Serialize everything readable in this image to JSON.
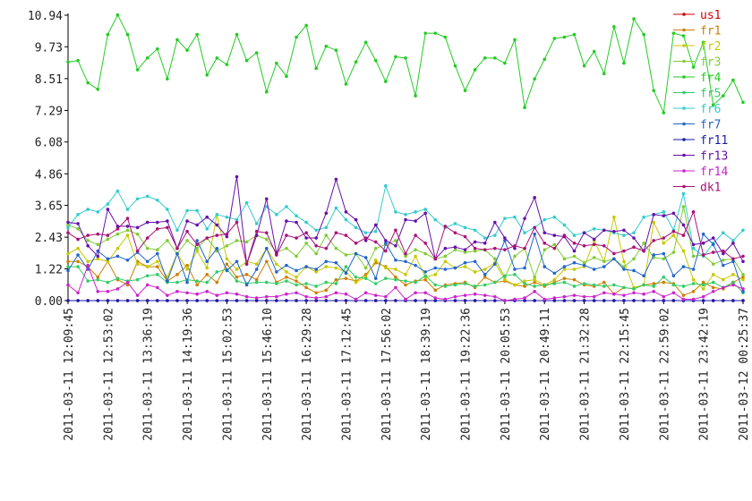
{
  "chart_data": {
    "type": "line",
    "legend": "upper right",
    "categories": [
      "2011-03-11 12:09:45",
      null,
      null,
      null,
      "2011-03-11 12:53:02",
      null,
      null,
      null,
      "2011-03-11 13:36:19",
      null,
      null,
      null,
      "2011-03-11 14:19:36",
      null,
      null,
      null,
      "2011-03-11 15:02:53",
      null,
      null,
      null,
      "2011-03-11 15:46:10",
      null,
      null,
      null,
      "2011-03-11 16:29:28",
      null,
      null,
      null,
      "2011-03-11 17:12:45",
      null,
      null,
      null,
      "2011-03-11 17:56:02",
      null,
      null,
      null,
      "2011-03-11 18:39:19",
      null,
      null,
      null,
      "2011-03-11 19:22:36",
      null,
      null,
      null,
      "2011-03-11 20:05:53",
      null,
      null,
      null,
      "2011-03-11 20:49:11",
      null,
      null,
      null,
      "2011-03-11 21:32:28",
      null,
      null,
      null,
      "2011-03-11 22:15:45",
      null,
      null,
      null,
      "2011-03-11 22:59:02",
      null,
      null,
      null,
      "2011-03-11 23:42:19",
      null,
      null,
      null,
      "2011-03-12 00:25:37"
    ],
    "ylim": [
      0,
      10.94
    ],
    "yticks": [
      {
        "value": 0,
        "label": "0.00"
      },
      1.22,
      2.43,
      3.65,
      4.86,
      6.08,
      7.29,
      8.51,
      9.73,
      10.94
    ],
    "series": [
      {
        "name": "us1",
        "color": "#cc0000",
        "values": [
          0,
          0,
          0,
          0,
          0,
          0,
          0,
          0,
          0,
          0,
          0,
          0,
          0,
          0,
          0,
          0,
          0,
          0,
          0,
          0,
          0,
          0,
          0,
          0,
          0,
          0,
          0,
          0,
          0,
          0,
          0,
          0,
          0,
          0,
          0,
          0,
          0,
          0,
          0,
          0,
          0,
          0,
          0,
          0,
          0,
          0,
          0,
          0,
          0,
          0,
          0,
          0,
          0,
          0,
          0,
          0,
          0,
          0,
          0,
          0,
          0,
          0,
          0,
          0,
          0,
          0,
          0,
          0,
          0
        ]
      },
      {
        "name": "fr1",
        "color": "#cc8000",
        "values": [
          1.5,
          1.5,
          1.3,
          0.9,
          1.5,
          0.8,
          0.6,
          1.5,
          1.3,
          1.3,
          0.75,
          1.0,
          1.35,
          0.6,
          1.0,
          0.7,
          1.4,
          0.9,
          1.0,
          0.8,
          1.5,
          0.7,
          0.9,
          0.75,
          0.5,
          0.3,
          0.4,
          0.8,
          0.85,
          0.75,
          1.0,
          1.45,
          1.3,
          0.9,
          0.6,
          0.75,
          0.8,
          0.4,
          0.6,
          0.65,
          0.7,
          0.5,
          0.9,
          0.7,
          0.75,
          0.6,
          0.55,
          0.7,
          0.55,
          0.7,
          0.85,
          0.8,
          0.6,
          0.55,
          0.7,
          0.25,
          0.5,
          0.45,
          0.6,
          0.65,
          0.7,
          0.65,
          0.2,
          0.35,
          0.7,
          0.5,
          0.45,
          0.7,
          0.9
        ]
      },
      {
        "name": "fr2",
        "color": "#c8c800",
        "values": [
          1.8,
          2.0,
          1.5,
          1.6,
          1.5,
          2.0,
          2.5,
          1.4,
          1.3,
          1.5,
          0.9,
          1.8,
          1.2,
          1.9,
          1.25,
          3.3,
          1.6,
          1.2,
          1.5,
          1.4,
          2.0,
          1.4,
          1.1,
          0.9,
          1.3,
          1.1,
          1.3,
          1.25,
          1.1,
          0.7,
          0.9,
          1.55,
          1.25,
          1.2,
          1.0,
          1.7,
          0.9,
          1.0,
          1.5,
          1.25,
          1.3,
          1.1,
          1.2,
          1.45,
          0.8,
          0.6,
          0.75,
          0.8,
          0.6,
          0.8,
          1.2,
          1.2,
          1.3,
          2.3,
          1.5,
          3.2,
          1.5,
          0.5,
          0.6,
          3.0,
          2.2,
          2.5,
          1.9,
          0.8,
          0.45,
          1.0,
          0.8,
          1.0,
          0.8
        ]
      },
      {
        "name": "fr3",
        "color": "#80cc33",
        "values": [
          2.9,
          2.75,
          2.3,
          2.15,
          2.35,
          2.55,
          2.7,
          2.55,
          2.0,
          1.95,
          2.3,
          1.8,
          2.3,
          2.0,
          2.4,
          1.9,
          2.1,
          2.3,
          2.25,
          2.5,
          2.35,
          1.85,
          2.0,
          1.7,
          2.2,
          1.8,
          2.5,
          2.0,
          1.75,
          1.8,
          1.25,
          2.0,
          2.15,
          2.3,
          1.7,
          1.95,
          1.8,
          1.6,
          1.7,
          1.95,
          1.85,
          1.9,
          1.95,
          1.6,
          0.9,
          1.7,
          2.0,
          0.9,
          1.95,
          2.15,
          1.6,
          1.7,
          1.45,
          1.65,
          1.5,
          1.6,
          1.3,
          1.6,
          2.2,
          1.65,
          1.6,
          1.85,
          3.6,
          1.7,
          1.75,
          1.4,
          1.55,
          1.6,
          1.0
        ]
      },
      {
        "name": "fr4",
        "color": "#22cc22",
        "values": [
          9.15,
          9.2,
          8.35,
          8.1,
          10.2,
          10.95,
          10.2,
          8.85,
          9.3,
          9.65,
          8.5,
          10.0,
          9.6,
          10.2,
          8.65,
          9.3,
          9.05,
          10.2,
          9.2,
          9.5,
          8.0,
          9.1,
          8.6,
          10.1,
          10.55,
          8.9,
          9.75,
          9.6,
          8.3,
          9.15,
          9.9,
          9.2,
          8.4,
          9.35,
          9.3,
          7.85,
          10.25,
          10.25,
          10.1,
          9.0,
          8.05,
          8.85,
          9.3,
          9.3,
          9.1,
          10.0,
          7.4,
          8.5,
          9.25,
          10.05,
          10.1,
          10.2,
          9.0,
          9.55,
          8.7,
          10.5,
          9.1,
          10.8,
          10.2,
          8.05,
          7.2,
          10.25,
          10.15,
          8.95,
          9.9,
          7.5,
          7.85,
          8.45,
          7.6
        ]
      },
      {
        "name": "fr5",
        "color": "#33cc66",
        "values": [
          1.3,
          1.3,
          0.75,
          0.8,
          0.7,
          0.85,
          0.75,
          0.8,
          0.95,
          1.0,
          0.7,
          0.7,
          0.8,
          0.75,
          0.7,
          1.1,
          1.2,
          0.75,
          0.65,
          0.7,
          0.7,
          0.65,
          0.75,
          0.6,
          0.65,
          0.55,
          0.7,
          0.65,
          1.3,
          0.9,
          0.85,
          0.65,
          0.85,
          0.8,
          0.75,
          0.7,
          0.95,
          0.6,
          0.55,
          0.6,
          0.65,
          0.55,
          0.6,
          0.7,
          0.95,
          1.0,
          0.65,
          0.55,
          0.6,
          0.65,
          0.7,
          0.55,
          0.65,
          0.6,
          0.55,
          0.6,
          0.5,
          0.45,
          0.6,
          0.55,
          0.9,
          0.6,
          0.55,
          0.65,
          0.6,
          0.7,
          0.5,
          0.7,
          0.3
        ]
      },
      {
        "name": "fr6",
        "color": "#33cccc",
        "values": [
          2.8,
          3.3,
          3.5,
          3.4,
          3.7,
          4.2,
          3.5,
          3.9,
          4.0,
          3.85,
          3.5,
          2.7,
          3.45,
          3.45,
          2.75,
          3.3,
          3.2,
          3.1,
          3.75,
          2.95,
          3.6,
          3.3,
          3.6,
          3.25,
          3.0,
          2.7,
          2.8,
          3.55,
          3.1,
          2.8,
          2.6,
          2.65,
          4.4,
          3.4,
          3.3,
          3.4,
          3.5,
          3.1,
          2.8,
          2.95,
          2.8,
          2.7,
          2.4,
          2.5,
          3.15,
          3.2,
          2.6,
          2.8,
          3.1,
          3.2,
          2.9,
          2.5,
          2.6,
          2.75,
          2.7,
          2.6,
          2.5,
          2.6,
          3.2,
          3.3,
          3.4,
          2.7,
          4.1,
          2.0,
          1.7,
          2.2,
          2.6,
          2.3,
          2.7
        ]
      },
      {
        "name": "fr7",
        "color": "#2266cc",
        "values": [
          1.15,
          1.75,
          1.2,
          1.9,
          1.6,
          1.7,
          1.55,
          1.85,
          1.5,
          1.8,
          0.75,
          1.8,
          0.7,
          2.3,
          1.5,
          2.0,
          1.15,
          1.5,
          0.6,
          1.2,
          2.0,
          1.1,
          1.35,
          1.15,
          1.3,
          1.2,
          1.5,
          1.45,
          1.05,
          1.8,
          1.65,
          0.85,
          2.2,
          1.55,
          1.5,
          1.35,
          1.1,
          1.25,
          1.2,
          1.25,
          1.45,
          1.5,
          1.0,
          1.4,
          2.3,
          1.2,
          1.25,
          2.55,
          1.3,
          1.05,
          1.3,
          1.45,
          1.35,
          1.2,
          1.3,
          1.6,
          1.2,
          1.15,
          0.95,
          1.75,
          1.8,
          0.95,
          1.3,
          1.2,
          2.55,
          2.15,
          1.35,
          1.5,
          0.35
        ]
      },
      {
        "name": "fr11",
        "color": "#1a1aaa",
        "values": [
          0,
          0,
          0,
          0,
          0,
          0,
          0,
          0,
          0,
          0,
          0,
          0,
          0,
          0,
          0,
          0,
          0,
          0,
          0,
          0,
          0,
          0,
          0,
          0,
          0,
          0,
          0,
          0,
          0,
          0,
          0,
          0,
          0,
          0,
          0,
          0,
          0,
          0,
          0,
          0,
          0,
          0,
          0,
          0,
          0,
          0,
          0,
          0,
          0,
          0,
          0,
          0,
          0,
          0,
          0,
          0,
          0,
          0,
          0,
          0,
          0,
          0,
          0,
          0,
          0,
          0,
          0,
          0,
          0
        ]
      },
      {
        "name": "fr13",
        "color": "#6611aa",
        "values": [
          3.0,
          2.95,
          2.1,
          1.7,
          3.5,
          2.85,
          2.85,
          2.8,
          3.0,
          3.0,
          3.05,
          2.0,
          3.05,
          2.9,
          3.2,
          2.9,
          2.45,
          4.75,
          1.4,
          2.5,
          3.9,
          1.8,
          3.05,
          3.0,
          2.4,
          2.4,
          3.35,
          4.65,
          3.4,
          3.1,
          2.3,
          2.9,
          2.3,
          2.1,
          3.1,
          3.05,
          3.35,
          1.6,
          2.0,
          2.05,
          1.95,
          2.25,
          2.2,
          3.0,
          2.4,
          2.0,
          3.15,
          3.95,
          2.6,
          2.5,
          2.45,
          1.9,
          2.6,
          2.35,
          2.7,
          2.65,
          2.7,
          2.4,
          1.9,
          3.3,
          3.25,
          3.35,
          2.9,
          2.15,
          2.2,
          2.4,
          1.8,
          2.2,
          1.5
        ]
      },
      {
        "name": "fr14",
        "color": "#cc22cc",
        "values": [
          0.6,
          0.3,
          1.35,
          0.35,
          0.35,
          0.45,
          0.7,
          0.2,
          0.6,
          0.5,
          0.2,
          0.35,
          0.3,
          0.25,
          0.35,
          0.2,
          0.3,
          0.25,
          0.15,
          0.1,
          0.15,
          0.15,
          0.25,
          0.3,
          0.15,
          0.1,
          0.15,
          0.3,
          0.25,
          0.05,
          0.3,
          0.2,
          0.15,
          0.5,
          0.05,
          0.3,
          0.3,
          0.1,
          0.05,
          0.15,
          0.2,
          0.25,
          0.2,
          0.15,
          0.0,
          0.05,
          0.1,
          0.35,
          0.05,
          0.1,
          0.15,
          0.2,
          0.15,
          0.15,
          0.3,
          0.25,
          0.2,
          0.3,
          0.25,
          0.35,
          0.15,
          0.3,
          0.05,
          0.05,
          0.15,
          0.35,
          0.5,
          0.6,
          0.45
        ]
      },
      {
        "name": "dk1",
        "color": "#aa1177",
        "values": [
          2.6,
          2.35,
          2.5,
          2.55,
          2.5,
          2.75,
          3.15,
          1.9,
          2.4,
          2.75,
          2.8,
          2.0,
          2.65,
          2.15,
          2.4,
          2.5,
          2.55,
          3.0,
          1.4,
          2.65,
          2.6,
          1.75,
          2.5,
          2.4,
          2.6,
          2.1,
          2.0,
          2.6,
          2.5,
          2.2,
          2.4,
          2.25,
          1.9,
          2.7,
          1.8,
          2.5,
          2.2,
          1.6,
          2.85,
          2.6,
          2.45,
          2.0,
          1.95,
          2.0,
          1.95,
          2.1,
          2.0,
          2.8,
          2.2,
          2.0,
          2.5,
          2.2,
          2.1,
          2.15,
          2.1,
          1.8,
          1.9,
          2.05,
          1.9,
          2.3,
          2.4,
          2.65,
          2.5,
          3.4,
          1.75,
          1.85,
          1.9,
          1.6,
          1.7
        ]
      }
    ]
  }
}
